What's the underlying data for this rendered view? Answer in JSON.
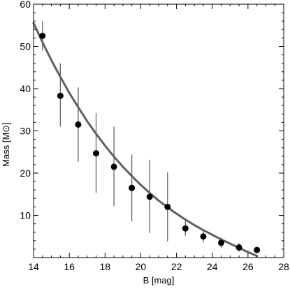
{
  "chart_data": {
    "type": "scatter",
    "xlabel": "B [mag]",
    "ylabel_prefix": "Mass [M",
    "ylabel_symbol": "⊙",
    "ylabel_suffix": "]",
    "xlim": [
      14,
      28
    ],
    "ylim": [
      0,
      60
    ],
    "xticks": [
      14,
      16,
      18,
      20,
      22,
      24,
      26,
      28
    ],
    "yticks": [
      10,
      20,
      30,
      40,
      50,
      60
    ],
    "points": [
      {
        "x": 14.5,
        "y": 52.5,
        "yerr_low": 49.0,
        "yerr_high": 56.0
      },
      {
        "x": 15.5,
        "y": 38.3,
        "yerr_low": 31.0,
        "yerr_high": 46.0
      },
      {
        "x": 16.5,
        "y": 31.5,
        "yerr_low": 22.7,
        "yerr_high": 40.3
      },
      {
        "x": 17.5,
        "y": 24.7,
        "yerr_low": 15.3,
        "yerr_high": 34.2
      },
      {
        "x": 18.5,
        "y": 21.5,
        "yerr_low": 12.2,
        "yerr_high": 31.0
      },
      {
        "x": 19.5,
        "y": 16.5,
        "yerr_low": 8.6,
        "yerr_high": 24.4
      },
      {
        "x": 20.5,
        "y": 14.4,
        "yerr_low": 5.8,
        "yerr_high": 23.2
      },
      {
        "x": 21.5,
        "y": 12.0,
        "yerr_low": 3.8,
        "yerr_high": 20.2
      },
      {
        "x": 22.5,
        "y": 6.9,
        "yerr_low": 5.2,
        "yerr_high": 8.7
      },
      {
        "x": 23.5,
        "y": 5.0,
        "yerr_low": 3.6,
        "yerr_high": 6.6
      },
      {
        "x": 24.5,
        "y": 3.5,
        "yerr_low": 2.3,
        "yerr_high": 4.8
      },
      {
        "x": 25.5,
        "y": 2.4,
        "yerr_low": 1.4,
        "yerr_high": 3.4
      },
      {
        "x": 26.5,
        "y": 1.8,
        "yerr_low": 1.0,
        "yerr_high": 2.6
      }
    ],
    "fit_curve": {
      "x": [
        14.0,
        14.5,
        15.0,
        15.5,
        16.0,
        16.5,
        17.0,
        17.5,
        18.0,
        18.5,
        19.0,
        19.5,
        20.0,
        20.5,
        21.0,
        21.5,
        22.0,
        22.5,
        23.0,
        23.5,
        24.0,
        24.5,
        25.0,
        25.5,
        26.0,
        26.5
      ],
      "y": [
        55.5,
        51.0,
        46.7,
        42.8,
        39.0,
        35.6,
        32.3,
        29.3,
        26.5,
        23.9,
        21.5,
        19.3,
        17.2,
        15.3,
        13.5,
        11.9,
        10.4,
        9.0,
        7.7,
        6.5,
        5.4,
        4.3,
        3.3,
        2.3,
        1.3,
        0.4
      ]
    },
    "grid": false,
    "colors": {
      "points": "#000000",
      "error_bars": "#555555",
      "fit": "#606060",
      "axes": "#000000"
    }
  }
}
